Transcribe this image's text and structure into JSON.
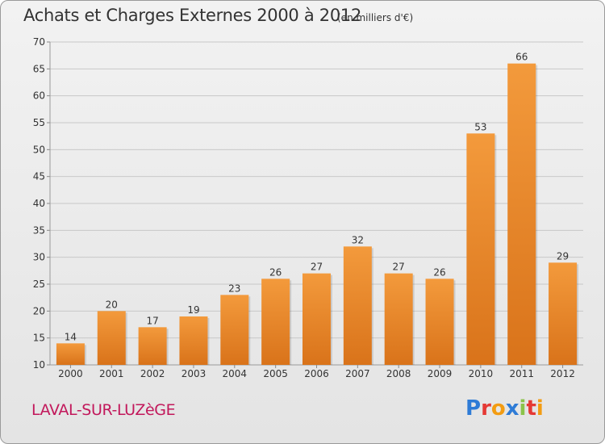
{
  "header": {
    "title": "Achats et Charges Externes 2000 à 2012",
    "subtitle": "(en milliers d'€)"
  },
  "footer": {
    "town": "LAVAL-SUR-LUZèGE",
    "logo": "Proxiti",
    "logo_letters": [
      {
        "ch": "P",
        "color": "#2e7bd6"
      },
      {
        "ch": "r",
        "color": "#e53935"
      },
      {
        "ch": "o",
        "color": "#f39c12"
      },
      {
        "ch": "x",
        "color": "#2e7bd6"
      },
      {
        "ch": "i",
        "color": "#8bc34a"
      },
      {
        "ch": "t",
        "color": "#e53935"
      },
      {
        "ch": "i",
        "color": "#f39c12"
      }
    ]
  },
  "chart_data": {
    "type": "bar",
    "categories": [
      "2000",
      "2001",
      "2002",
      "2003",
      "2004",
      "2005",
      "2006",
      "2007",
      "2008",
      "2009",
      "2010",
      "2011",
      "2012"
    ],
    "values": [
      14,
      20,
      17,
      19,
      23,
      26,
      27,
      32,
      27,
      26,
      53,
      66,
      29
    ],
    "title": "Achats et Charges Externes 2000 à 2012",
    "xlabel": "",
    "ylabel": "",
    "ylim": [
      10,
      70
    ],
    "yticks": [
      10,
      15,
      20,
      25,
      30,
      35,
      40,
      45,
      50,
      55,
      60,
      65,
      70
    ],
    "grid": true,
    "bar_color": "#f39a3c",
    "bar_color_dark": "#d9731a"
  }
}
